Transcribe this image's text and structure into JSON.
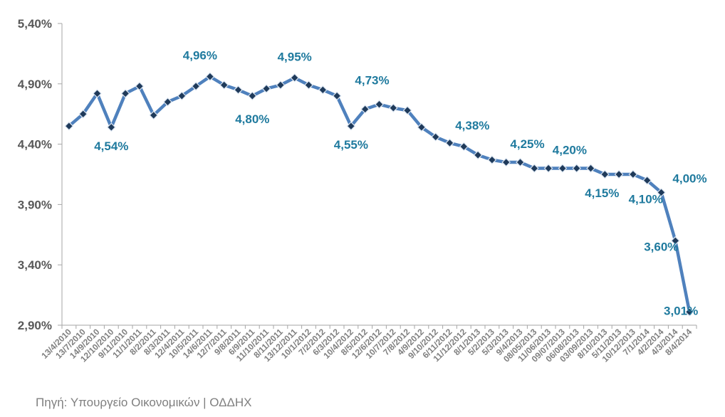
{
  "chart_data": {
    "type": "line",
    "x": [
      "13/4/2010",
      "13/7/2010",
      "14/9/2010",
      "12/10/2010",
      "9/11/2010",
      "11/1/2011",
      "8/2/2011",
      "8/3/2011",
      "12/4/2011",
      "10/5/2011",
      "14/6/2011",
      "12/7/2011",
      "9/8/2011",
      "6/9/2011",
      "11/10/2011",
      "8/11/2011",
      "13/12/2011",
      "10/1/2012",
      "7/2/2012",
      "6/3/2012",
      "10/4/2012",
      "8/5/2012",
      "12/6/2012",
      "10/7/2012",
      "7/8/2012",
      "4/9/2012",
      "9/10/2012",
      "6/11/2012",
      "11/12/2012",
      "8/1/2013",
      "5/2/2013",
      "5/3/2013",
      "9/4/2013",
      "08/05/2013",
      "11/06/2013",
      "09/07/2013",
      "06/08/2013",
      "03/09/2013",
      "8/10/2013",
      "5/11/2013",
      "10/12/2013",
      "7/1/2014",
      "4/2/2014",
      "4/3/2014",
      "8/4/2014"
    ],
    "x_tick_labels": [
      "13/4/2010",
      "13/7/2010",
      "14/9/2010",
      "12/10/2010",
      "9/11/2010",
      "11/1/2011",
      "8/2/2011",
      "8/3/2011",
      "12/4/2011",
      "10/5/2011",
      "14/6/2011",
      "12/7/2011",
      "9/8/2011",
      "6/9/2011",
      "11/10/2011",
      "8/11/2011",
      "13/12/2011",
      "10/1/2012",
      "7/2/2012",
      "6/3/2012",
      "10/4/2012",
      "8/5/2012",
      "12/6/2012",
      "10/7/2012",
      "7/8/2012",
      "4/9/2012",
      "9/10/2012",
      "6/11/2012",
      "11/12/2012",
      "8/1/2013",
      "5/2/2013",
      "5/3/2013",
      "9/4/2013",
      "08/05/2013",
      "11/06/2013",
      "09/07/2013",
      "06/08/2013",
      "03/09/2013",
      "8/10/2013",
      "5/11/2013",
      "10/12/2013",
      "7/1/2014",
      "4/2/2014",
      "4/3/2014",
      "8/4/2014"
    ],
    "series": [
      {
        "values": [
          4.55,
          4.65,
          4.82,
          4.54,
          4.82,
          4.88,
          4.64,
          4.75,
          4.8,
          4.88,
          4.96,
          4.89,
          4.85,
          4.8,
          4.86,
          4.89,
          4.95,
          4.89,
          4.85,
          4.8,
          4.55,
          4.69,
          4.73,
          4.7,
          4.68,
          4.54,
          4.46,
          4.41,
          4.38,
          4.31,
          4.27,
          4.25,
          4.25,
          4.2,
          4.2,
          4.2,
          4.2,
          4.2,
          4.15,
          4.15,
          4.15,
          4.1,
          4.0,
          3.6,
          3.01
        ],
        "color": "#4f81bd",
        "marker_color": "#1f3a5a"
      }
    ],
    "data_labels": [
      {
        "index": 3,
        "text": "4,54%"
      },
      {
        "index": 10,
        "text": "4,96%"
      },
      {
        "index": 13,
        "text": "4,80%"
      },
      {
        "index": 16,
        "text": "4,95%"
      },
      {
        "index": 20,
        "text": "4,55%"
      },
      {
        "index": 22,
        "text": "4,73%"
      },
      {
        "index": 28,
        "text": "4,38%"
      },
      {
        "index": 32,
        "text": "4,25%"
      },
      {
        "index": 35,
        "text": "4,20%"
      },
      {
        "index": 38,
        "text": "4,15%"
      },
      {
        "index": 41,
        "text": "4,10%"
      },
      {
        "index": 42,
        "text": "4,00%"
      },
      {
        "index": 43,
        "text": "3,60%"
      },
      {
        "index": 44,
        "text": "3,01%"
      }
    ],
    "y_tick_labels": [
      "2,90%",
      "3,40%",
      "3,90%",
      "4,40%",
      "4,90%",
      "5,40%"
    ],
    "y_ticks": [
      2.9,
      3.4,
      3.9,
      4.4,
      4.9,
      5.4
    ],
    "ylim": [
      2.9,
      5.4
    ],
    "title": "",
    "xlabel": "",
    "ylabel": "",
    "grid": false,
    "legend": "none"
  },
  "source": "Πηγή: Υπουργείο Οικονομικών | ΟΔΔΗΧ"
}
